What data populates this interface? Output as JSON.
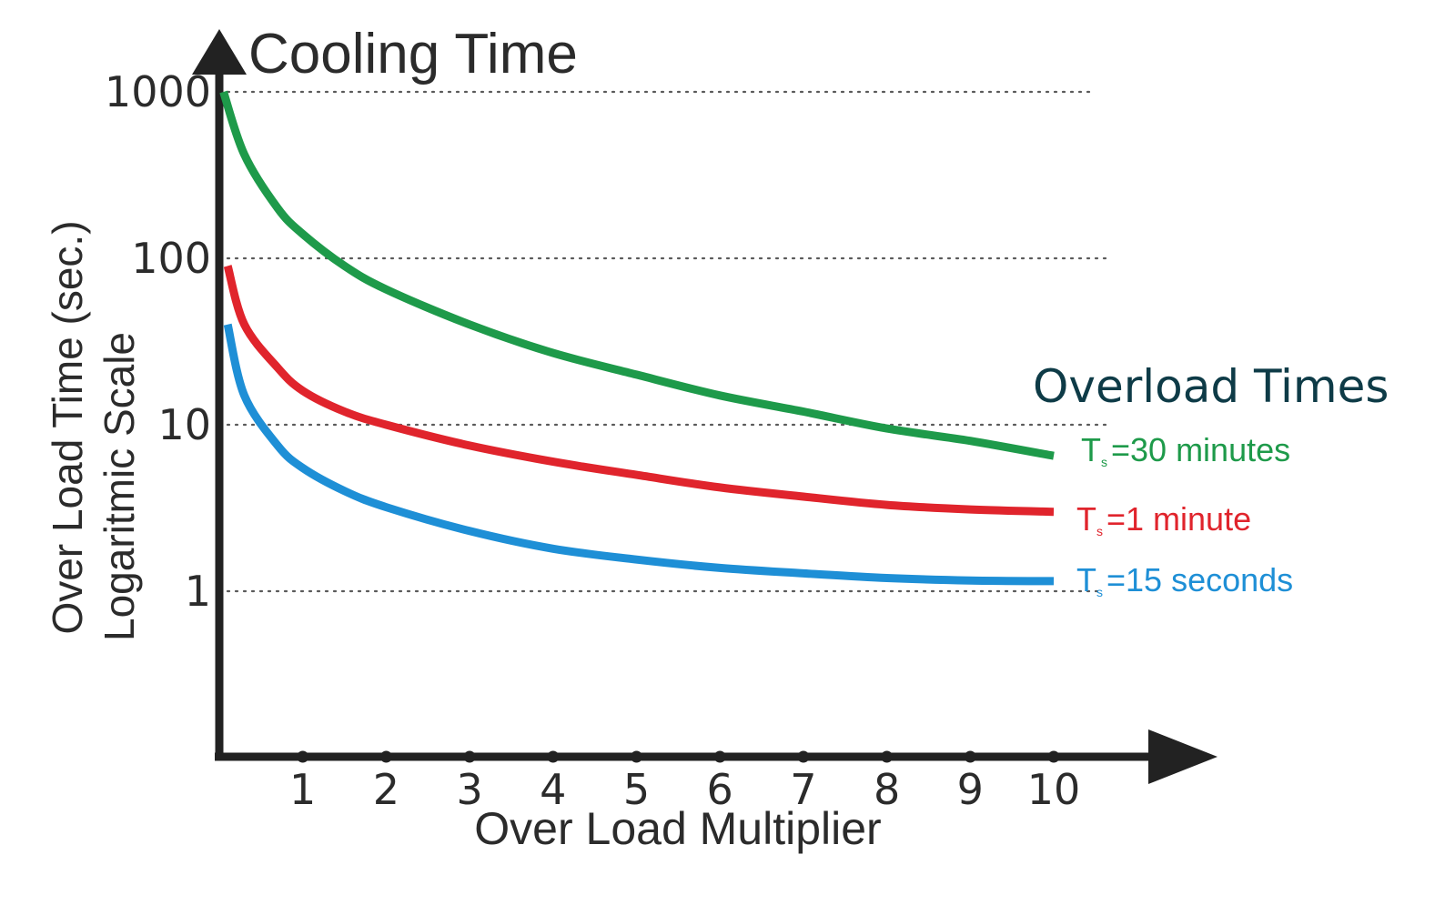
{
  "chart_data": {
    "type": "line",
    "title": "Cooling Time",
    "xlabel": "Over Load Multiplier",
    "ylabel_line1": "Over Load Time (sec.)",
    "ylabel_line2": "Logaritmic Scale",
    "yscale": "log",
    "ylim": [
      0.1,
      1000
    ],
    "xlim": [
      0,
      10
    ],
    "x_ticks": [
      "1",
      "2",
      "3",
      "4",
      "5",
      "6",
      "7",
      "8",
      "9",
      "10"
    ],
    "y_ticks": [
      {
        "label": "1000",
        "value": 1000
      },
      {
        "label": "100",
        "value": 100
      },
      {
        "label": "10",
        "value": 10
      },
      {
        "label": "1",
        "value": 1
      }
    ],
    "grid": "dotted horizontal",
    "legend_title": "Overload Times",
    "legend_placement": "right",
    "series": [
      {
        "label_symbol": "T",
        "label_sub": "s",
        "label_rest": "=30 minutes",
        "color": "#1e9a4a",
        "x": [
          0.05,
          0.3,
          0.7,
          1,
          1.5,
          2,
          3,
          4,
          5,
          6,
          7,
          8,
          9,
          10
        ],
        "y": [
          1000,
          420,
          200,
          140,
          90,
          65,
          40,
          27,
          20,
          15,
          12,
          9.5,
          8,
          6.5
        ]
      },
      {
        "label_symbol": "T",
        "label_sub": "s",
        "label_rest": "=1 minute",
        "color": "#e0242c",
        "x": [
          0.1,
          0.3,
          0.7,
          1,
          1.5,
          2,
          3,
          4,
          5,
          6,
          7,
          8,
          9,
          10
        ],
        "y": [
          90,
          40,
          22,
          16,
          12,
          10,
          7.5,
          6,
          5,
          4.2,
          3.7,
          3.3,
          3.1,
          3
        ]
      },
      {
        "label_symbol": "T",
        "label_sub": "s",
        "label_rest": "=15 seconds",
        "color": "#1e8fd6",
        "x": [
          0.1,
          0.3,
          0.7,
          1,
          1.5,
          2,
          3,
          4,
          5,
          6,
          7,
          8,
          9,
          10
        ],
        "y": [
          40,
          15,
          7.5,
          5.5,
          4,
          3.2,
          2.3,
          1.8,
          1.55,
          1.38,
          1.28,
          1.2,
          1.16,
          1.15
        ]
      }
    ]
  }
}
